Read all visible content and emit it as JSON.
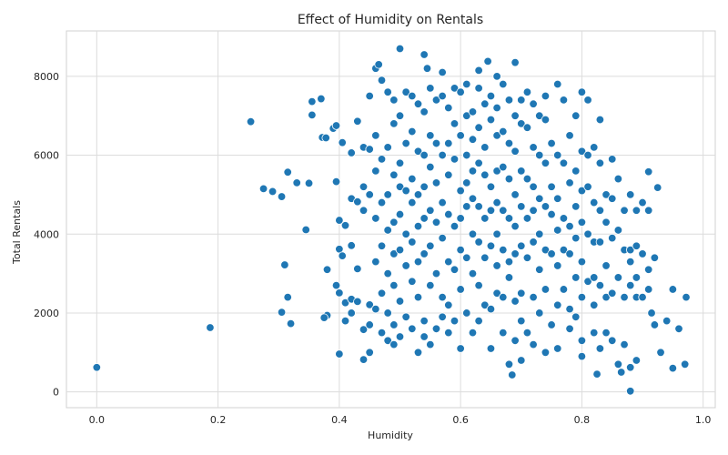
{
  "chart_data": {
    "type": "scatter",
    "title": "Effect of Humidity on Rentals",
    "xlabel": "Humidity",
    "ylabel": "Total Rentals",
    "xlim": [
      -0.05,
      1.02
    ],
    "ylim": [
      -400,
      9150
    ],
    "xticks": [
      0.0,
      0.2,
      0.4,
      0.6,
      0.8,
      1.0
    ],
    "xtick_labels": [
      "0.0",
      "0.2",
      "0.4",
      "0.6",
      "0.8",
      "1.0"
    ],
    "yticks": [
      0,
      2000,
      4000,
      6000,
      8000
    ],
    "ytick_labels": [
      "0",
      "2000",
      "4000",
      "6000",
      "8000"
    ],
    "grid": true,
    "marker_color": "#1f77b4",
    "marker_edge": "#ffffff",
    "points": [
      [
        0.0,
        620
      ],
      [
        0.187,
        1630
      ],
      [
        0.254,
        6850
      ],
      [
        0.275,
        5150
      ],
      [
        0.29,
        5080
      ],
      [
        0.305,
        4950
      ],
      [
        0.305,
        2020
      ],
      [
        0.31,
        3220
      ],
      [
        0.315,
        5570
      ],
      [
        0.315,
        2400
      ],
      [
        0.32,
        1730
      ],
      [
        0.33,
        5300
      ],
      [
        0.345,
        4110
      ],
      [
        0.35,
        5290
      ],
      [
        0.355,
        7360
      ],
      [
        0.355,
        7020
      ],
      [
        0.37,
        7430
      ],
      [
        0.372,
        6450
      ],
      [
        0.378,
        6440
      ],
      [
        0.38,
        3100
      ],
      [
        0.38,
        1940
      ],
      [
        0.375,
        1880
      ],
      [
        0.39,
        6680
      ],
      [
        0.395,
        6750
      ],
      [
        0.395,
        2700
      ],
      [
        0.4,
        3620
      ],
      [
        0.4,
        2510
      ],
      [
        0.4,
        960
      ],
      [
        0.395,
        5330
      ],
      [
        0.4,
        4350
      ],
      [
        0.405,
        6320
      ],
      [
        0.405,
        3450
      ],
      [
        0.41,
        4220
      ],
      [
        0.41,
        2260
      ],
      [
        0.41,
        1800
      ],
      [
        0.42,
        6060
      ],
      [
        0.42,
        4900
      ],
      [
        0.42,
        3710
      ],
      [
        0.42,
        2350
      ],
      [
        0.42,
        2000
      ],
      [
        0.43,
        6860
      ],
      [
        0.43,
        4820
      ],
      [
        0.43,
        3120
      ],
      [
        0.43,
        2290
      ],
      [
        0.44,
        6200
      ],
      [
        0.44,
        5200
      ],
      [
        0.44,
        4600
      ],
      [
        0.44,
        1580
      ],
      [
        0.44,
        820
      ],
      [
        0.45,
        7500
      ],
      [
        0.45,
        6150
      ],
      [
        0.45,
        5000
      ],
      [
        0.45,
        2210
      ],
      [
        0.45,
        1700
      ],
      [
        0.45,
        1000
      ],
      [
        0.46,
        8200
      ],
      [
        0.46,
        6500
      ],
      [
        0.46,
        5600
      ],
      [
        0.46,
        4400
      ],
      [
        0.46,
        3300
      ],
      [
        0.46,
        2100
      ],
      [
        0.465,
        8300
      ],
      [
        0.47,
        7900
      ],
      [
        0.47,
        5900
      ],
      [
        0.47,
        4800
      ],
      [
        0.47,
        3700
      ],
      [
        0.47,
        2500
      ],
      [
        0.47,
        1500
      ],
      [
        0.48,
        7600
      ],
      [
        0.48,
        6200
      ],
      [
        0.48,
        5000
      ],
      [
        0.48,
        4100
      ],
      [
        0.48,
        3000
      ],
      [
        0.48,
        2000
      ],
      [
        0.48,
        1300
      ],
      [
        0.49,
        7400
      ],
      [
        0.49,
        6800
      ],
      [
        0.49,
        5500
      ],
      [
        0.49,
        4300
      ],
      [
        0.49,
        3500
      ],
      [
        0.49,
        2700
      ],
      [
        0.49,
        1700
      ],
      [
        0.49,
        1200
      ],
      [
        0.5,
        8700
      ],
      [
        0.5,
        7000
      ],
      [
        0.5,
        5800
      ],
      [
        0.5,
        5200
      ],
      [
        0.5,
        4500
      ],
      [
        0.5,
        3600
      ],
      [
        0.5,
        2300
      ],
      [
        0.5,
        1400
      ],
      [
        0.51,
        7600
      ],
      [
        0.51,
        6300
      ],
      [
        0.51,
        5100
      ],
      [
        0.51,
        4000
      ],
      [
        0.51,
        3200
      ],
      [
        0.51,
        1900
      ],
      [
        0.52,
        7500
      ],
      [
        0.52,
        6600
      ],
      [
        0.52,
        5400
      ],
      [
        0.52,
        4800
      ],
      [
        0.52,
        3800
      ],
      [
        0.52,
        2800
      ],
      [
        0.52,
        1600
      ],
      [
        0.53,
        7300
      ],
      [
        0.53,
        6100
      ],
      [
        0.53,
        5000
      ],
      [
        0.53,
        4200
      ],
      [
        0.53,
        3300
      ],
      [
        0.53,
        2400
      ],
      [
        0.53,
        1000
      ],
      [
        0.54,
        8550
      ],
      [
        0.54,
        7100
      ],
      [
        0.54,
        6000
      ],
      [
        0.54,
        5200
      ],
      [
        0.54,
        4400
      ],
      [
        0.54,
        3500
      ],
      [
        0.54,
        1800
      ],
      [
        0.54,
        1400
      ],
      [
        0.545,
        8200
      ],
      [
        0.55,
        7700
      ],
      [
        0.55,
        6500
      ],
      [
        0.55,
        5700
      ],
      [
        0.55,
        4600
      ],
      [
        0.55,
        3700
      ],
      [
        0.55,
        2700
      ],
      [
        0.55,
        1200
      ],
      [
        0.56,
        7400
      ],
      [
        0.56,
        6300
      ],
      [
        0.56,
        5300
      ],
      [
        0.56,
        4300
      ],
      [
        0.56,
        3000
      ],
      [
        0.56,
        1600
      ],
      [
        0.57,
        8100
      ],
      [
        0.57,
        7500
      ],
      [
        0.57,
        6000
      ],
      [
        0.57,
        4800
      ],
      [
        0.57,
        3900
      ],
      [
        0.57,
        2400
      ],
      [
        0.57,
        1900
      ],
      [
        0.58,
        7200
      ],
      [
        0.58,
        6300
      ],
      [
        0.58,
        5500
      ],
      [
        0.58,
        4500
      ],
      [
        0.58,
        3300
      ],
      [
        0.58,
        2200
      ],
      [
        0.58,
        1500
      ],
      [
        0.59,
        7700
      ],
      [
        0.59,
        6800
      ],
      [
        0.59,
        5900
      ],
      [
        0.59,
        4200
      ],
      [
        0.59,
        3100
      ],
      [
        0.59,
        1800
      ],
      [
        0.6,
        7600
      ],
      [
        0.6,
        6500
      ],
      [
        0.6,
        5100
      ],
      [
        0.6,
        4400
      ],
      [
        0.6,
        3600
      ],
      [
        0.6,
        2600
      ],
      [
        0.6,
        1100
      ],
      [
        0.61,
        7800
      ],
      [
        0.61,
        7000
      ],
      [
        0.61,
        6000
      ],
      [
        0.61,
        5300
      ],
      [
        0.61,
        4700
      ],
      [
        0.61,
        3400
      ],
      [
        0.61,
        2000
      ],
      [
        0.62,
        7100
      ],
      [
        0.62,
        6400
      ],
      [
        0.62,
        5600
      ],
      [
        0.62,
        4900
      ],
      [
        0.62,
        4000
      ],
      [
        0.62,
        3000
      ],
      [
        0.62,
        1500
      ],
      [
        0.63,
        8150
      ],
      [
        0.63,
        7700
      ],
      [
        0.63,
        6700
      ],
      [
        0.63,
        5800
      ],
      [
        0.63,
        4700
      ],
      [
        0.63,
        3800
      ],
      [
        0.63,
        2700
      ],
      [
        0.63,
        1800
      ],
      [
        0.64,
        7300
      ],
      [
        0.64,
        6200
      ],
      [
        0.64,
        5500
      ],
      [
        0.64,
        4400
      ],
      [
        0.64,
        3400
      ],
      [
        0.64,
        2200
      ],
      [
        0.645,
        8380
      ],
      [
        0.65,
        7500
      ],
      [
        0.65,
        6900
      ],
      [
        0.65,
        5200
      ],
      [
        0.65,
        4600
      ],
      [
        0.65,
        3700
      ],
      [
        0.65,
        2100
      ],
      [
        0.65,
        1100
      ],
      [
        0.66,
        8000
      ],
      [
        0.66,
        7200
      ],
      [
        0.66,
        6500
      ],
      [
        0.66,
        5600
      ],
      [
        0.66,
        4800
      ],
      [
        0.66,
        4000
      ],
      [
        0.66,
        3200
      ],
      [
        0.66,
        2500
      ],
      [
        0.67,
        7800
      ],
      [
        0.67,
        6600
      ],
      [
        0.67,
        5700
      ],
      [
        0.67,
        4600
      ],
      [
        0.67,
        3600
      ],
      [
        0.67,
        2400
      ],
      [
        0.67,
        1500
      ],
      [
        0.68,
        7400
      ],
      [
        0.68,
        6300
      ],
      [
        0.68,
        5400
      ],
      [
        0.68,
        4400
      ],
      [
        0.68,
        3300
      ],
      [
        0.68,
        2900
      ],
      [
        0.68,
        700
      ],
      [
        0.685,
        430
      ],
      [
        0.69,
        8350
      ],
      [
        0.69,
        7000
      ],
      [
        0.69,
        6100
      ],
      [
        0.69,
        5000
      ],
      [
        0.69,
        4200
      ],
      [
        0.69,
        3500
      ],
      [
        0.69,
        2300
      ],
      [
        0.69,
        1300
      ],
      [
        0.7,
        7400
      ],
      [
        0.7,
        6800
      ],
      [
        0.7,
        5600
      ],
      [
        0.7,
        4700
      ],
      [
        0.7,
        3700
      ],
      [
        0.7,
        2500
      ],
      [
        0.7,
        1800
      ],
      [
        0.7,
        800
      ],
      [
        0.71,
        7600
      ],
      [
        0.71,
        6700
      ],
      [
        0.71,
        5400
      ],
      [
        0.71,
        4400
      ],
      [
        0.71,
        3400
      ],
      [
        0.71,
        1500
      ],
      [
        0.72,
        7300
      ],
      [
        0.72,
        6200
      ],
      [
        0.72,
        5200
      ],
      [
        0.72,
        4600
      ],
      [
        0.72,
        3800
      ],
      [
        0.72,
        2400
      ],
      [
        0.72,
        1200
      ],
      [
        0.73,
        7000
      ],
      [
        0.73,
        6000
      ],
      [
        0.73,
        4900
      ],
      [
        0.73,
        4000
      ],
      [
        0.73,
        3100
      ],
      [
        0.73,
        2000
      ],
      [
        0.74,
        7500
      ],
      [
        0.74,
        6900
      ],
      [
        0.74,
        5800
      ],
      [
        0.74,
        4700
      ],
      [
        0.74,
        3600
      ],
      [
        0.74,
        2600
      ],
      [
        0.74,
        1000
      ],
      [
        0.75,
        6300
      ],
      [
        0.75,
        5200
      ],
      [
        0.75,
        4500
      ],
      [
        0.75,
        3500
      ],
      [
        0.75,
        1700
      ],
      [
        0.76,
        7800
      ],
      [
        0.76,
        6000
      ],
      [
        0.76,
        4900
      ],
      [
        0.76,
        4100
      ],
      [
        0.76,
        3200
      ],
      [
        0.76,
        2200
      ],
      [
        0.76,
        1100
      ],
      [
        0.77,
        7400
      ],
      [
        0.77,
        5800
      ],
      [
        0.77,
        4400
      ],
      [
        0.77,
        3600
      ],
      [
        0.77,
        2600
      ],
      [
        0.78,
        6500
      ],
      [
        0.78,
        5300
      ],
      [
        0.78,
        4200
      ],
      [
        0.78,
        3500
      ],
      [
        0.78,
        2100
      ],
      [
        0.78,
        1600
      ],
      [
        0.79,
        7000
      ],
      [
        0.79,
        5600
      ],
      [
        0.79,
        4700
      ],
      [
        0.79,
        3900
      ],
      [
        0.79,
        2900
      ],
      [
        0.79,
        1900
      ],
      [
        0.8,
        7600
      ],
      [
        0.8,
        6100
      ],
      [
        0.8,
        5100
      ],
      [
        0.8,
        4300
      ],
      [
        0.8,
        3300
      ],
      [
        0.8,
        2400
      ],
      [
        0.8,
        1300
      ],
      [
        0.8,
        900
      ],
      [
        0.81,
        7400
      ],
      [
        0.81,
        6000
      ],
      [
        0.81,
        5200
      ],
      [
        0.81,
        4000
      ],
      [
        0.81,
        2800
      ],
      [
        0.82,
        6200
      ],
      [
        0.82,
        4800
      ],
      [
        0.82,
        3800
      ],
      [
        0.82,
        2900
      ],
      [
        0.82,
        2200
      ],
      [
        0.82,
        1500
      ],
      [
        0.825,
        450
      ],
      [
        0.83,
        6900
      ],
      [
        0.83,
        5800
      ],
      [
        0.83,
        4600
      ],
      [
        0.83,
        3800
      ],
      [
        0.83,
        2700
      ],
      [
        0.83,
        1100
      ],
      [
        0.84,
        5000
      ],
      [
        0.84,
        4300
      ],
      [
        0.84,
        3200
      ],
      [
        0.84,
        2400
      ],
      [
        0.84,
        1500
      ],
      [
        0.85,
        5900
      ],
      [
        0.85,
        4900
      ],
      [
        0.85,
        3900
      ],
      [
        0.85,
        2500
      ],
      [
        0.85,
        1300
      ],
      [
        0.86,
        5400
      ],
      [
        0.86,
        4100
      ],
      [
        0.86,
        2900
      ],
      [
        0.86,
        700
      ],
      [
        0.865,
        500
      ],
      [
        0.87,
        4600
      ],
      [
        0.87,
        3600
      ],
      [
        0.87,
        2400
      ],
      [
        0.87,
        1200
      ],
      [
        0.88,
        5000
      ],
      [
        0.88,
        3600
      ],
      [
        0.88,
        3300
      ],
      [
        0.88,
        2700
      ],
      [
        0.88,
        620
      ],
      [
        0.88,
        20
      ],
      [
        0.89,
        4600
      ],
      [
        0.89,
        3700
      ],
      [
        0.89,
        2900
      ],
      [
        0.89,
        2400
      ],
      [
        0.89,
        800
      ],
      [
        0.9,
        4800
      ],
      [
        0.9,
        3500
      ],
      [
        0.9,
        2400
      ],
      [
        0.91,
        5580
      ],
      [
        0.91,
        4600
      ],
      [
        0.91,
        3100
      ],
      [
        0.91,
        2600
      ],
      [
        0.915,
        2000
      ],
      [
        0.92,
        3400
      ],
      [
        0.92,
        1700
      ],
      [
        0.925,
        5180
      ],
      [
        0.93,
        1000
      ],
      [
        0.94,
        1800
      ],
      [
        0.95,
        2600
      ],
      [
        0.95,
        600
      ],
      [
        0.96,
        1600
      ],
      [
        0.97,
        700
      ],
      [
        0.972,
        2400
      ]
    ]
  }
}
